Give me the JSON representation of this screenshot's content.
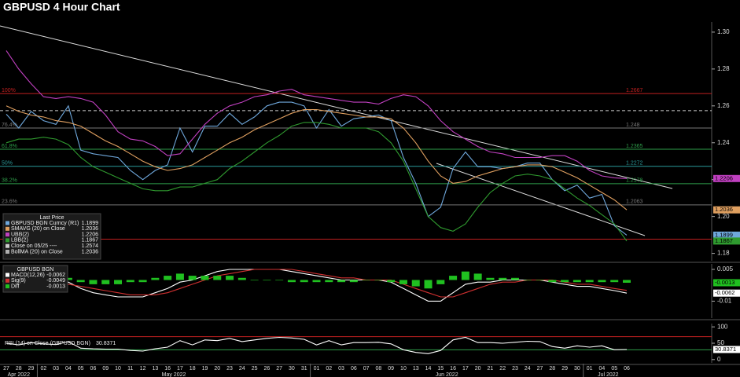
{
  "chart_data": [
    {
      "type": "line",
      "title": "GBPUSD 4 Hour Chart",
      "legend_title": "Last Price",
      "ylim": [
        1.176,
        1.3055
      ],
      "yticks": [
        {
          "value": 1.3,
          "label": "1.30"
        },
        {
          "value": 1.28,
          "label": "1.28"
        },
        {
          "value": 1.26,
          "label": "1.26"
        },
        {
          "value": 1.24,
          "label": "1.24"
        },
        {
          "value": 1.22,
          "label": "1.22"
        },
        {
          "value": 1.2,
          "label": "1.20"
        },
        {
          "value": 1.18,
          "label": "1.18"
        }
      ],
      "series": [
        {
          "name": "GBPUSD BGN Curncy (R1)",
          "color": "#6fa8dc",
          "badge": true,
          "values": [
            1.2555,
            1.248,
            1.257,
            1.252,
            1.25,
            1.26,
            1.236,
            1.234,
            1.233,
            1.232,
            1.225,
            1.22,
            1.225,
            1.228,
            1.248,
            1.235,
            1.249,
            1.249,
            1.256,
            1.25,
            1.254,
            1.26,
            1.262,
            1.262,
            1.26,
            1.248,
            1.258,
            1.249,
            1.253,
            1.254,
            1.255,
            1.252,
            1.232,
            1.218,
            1.2,
            1.205,
            1.226,
            1.235,
            1.227,
            1.227,
            1.226,
            1.227,
            1.229,
            1.229,
            1.22,
            1.214,
            1.217,
            1.21,
            1.212,
            1.195,
            1.1899
          ]
        },
        {
          "name": "SMAVG (20) on Close",
          "color": "#e0a060",
          "badge": true,
          "values": [
            1.26,
            1.257,
            1.255,
            1.254,
            1.252,
            1.251,
            1.249,
            1.245,
            1.241,
            1.238,
            1.234,
            1.23,
            1.227,
            1.225,
            1.226,
            1.228,
            1.232,
            1.236,
            1.24,
            1.243,
            1.247,
            1.25,
            1.253,
            1.256,
            1.258,
            1.258,
            1.257,
            1.256,
            1.255,
            1.254,
            1.254,
            1.253,
            1.248,
            1.24,
            1.23,
            1.222,
            1.218,
            1.219,
            1.222,
            1.224,
            1.226,
            1.227,
            1.228,
            1.228,
            1.227,
            1.224,
            1.221,
            1.217,
            1.213,
            1.209,
            1.2036
          ]
        },
        {
          "name": "UBB(2)",
          "color": "#c040c0",
          "badge": true,
          "values": [
            1.29,
            1.28,
            1.272,
            1.265,
            1.264,
            1.265,
            1.264,
            1.262,
            1.255,
            1.246,
            1.242,
            1.241,
            1.238,
            1.233,
            1.234,
            1.242,
            1.25,
            1.256,
            1.26,
            1.262,
            1.265,
            1.266,
            1.268,
            1.269,
            1.266,
            1.265,
            1.264,
            1.263,
            1.262,
            1.262,
            1.261,
            1.264,
            1.266,
            1.265,
            1.26,
            1.252,
            1.246,
            1.242,
            1.238,
            1.235,
            1.234,
            1.232,
            1.232,
            1.232,
            1.233,
            1.233,
            1.23,
            1.225,
            1.222,
            1.221,
            1.2206
          ]
        },
        {
          "name": "LBB(2)",
          "color": "#2f9a2f",
          "badge": true,
          "values": [
            1.24,
            1.242,
            1.242,
            1.243,
            1.242,
            1.239,
            1.232,
            1.227,
            1.224,
            1.221,
            1.218,
            1.215,
            1.214,
            1.214,
            1.216,
            1.216,
            1.218,
            1.22,
            1.226,
            1.23,
            1.235,
            1.24,
            1.244,
            1.249,
            1.251,
            1.251,
            1.25,
            1.248,
            1.248,
            1.248,
            1.246,
            1.24,
            1.23,
            1.215,
            1.2,
            1.194,
            1.192,
            1.196,
            1.205,
            1.213,
            1.218,
            1.222,
            1.223,
            1.222,
            1.22,
            1.215,
            1.21,
            1.206,
            1.201,
            1.196,
            1.1867
          ]
        }
      ],
      "levels": [
        {
          "label": "100%",
          "value": 1.2667,
          "color": "#c02020",
          "show_value": true
        },
        {
          "name": "Close on 05/25 ----",
          "value": 1.2574,
          "color": "#cccccc",
          "dash": true
        },
        {
          "label": "76.4%",
          "value": 1.248,
          "color": "#777777",
          "show_value": true
        },
        {
          "label": "61.8%",
          "value": 1.2365,
          "color": "#2e9e4a",
          "show_value": true
        },
        {
          "label": "50%",
          "value": 1.2272,
          "color": "#2a9a9a",
          "show_value": true
        },
        {
          "label": "38.2%",
          "value": 1.2178,
          "color": "#2e9e4a",
          "show_value": true
        },
        {
          "label": "23.6%",
          "value": 1.2063,
          "color": "#777777",
          "show_value": true
        },
        {
          "value": 1.1877,
          "color": "#c02020"
        }
      ],
      "legend_items": [
        {
          "name": "BollMA (20) on Close",
          "value": 1.2036,
          "color": "#b0b0b0"
        }
      ]
    },
    {
      "type": "macd",
      "legend_title": "GBPUSD BGN",
      "ylim": [
        -0.018,
        0.0076
      ],
      "yticks": [
        0.005,
        -0.01
      ],
      "series": [
        {
          "name": "MACD(12,26)",
          "color": "#ffffff",
          "badge": true,
          "values": [
            -0.002,
            -0.003,
            -0.003,
            -0.002,
            -0.002,
            -0.001,
            -0.004,
            -0.006,
            -0.007,
            -0.008,
            -0.008,
            -0.008,
            -0.006,
            -0.004,
            -0.001,
            0,
            0.002,
            0.004,
            0.005,
            0.005,
            0.005,
            0.005,
            0.005,
            0.004,
            0.003,
            0.002,
            0.001,
            0,
            0,
            0,
            0,
            -0.001,
            -0.004,
            -0.007,
            -0.01,
            -0.01,
            -0.006,
            -0.002,
            -0.001,
            -0.001,
            0,
            0,
            0,
            0,
            -0.001,
            -0.002,
            -0.003,
            -0.003,
            -0.004,
            -0.005,
            -0.0062
          ]
        },
        {
          "name": "Sig(9)",
          "color": "#d03030",
          "values": [
            -0.001,
            -0.002,
            -0.002,
            -0.002,
            -0.002,
            -0.002,
            -0.003,
            -0.004,
            -0.005,
            -0.006,
            -0.007,
            -0.007,
            -0.007,
            -0.006,
            -0.004,
            -0.002,
            0,
            0.002,
            0.003,
            0.004,
            0.005,
            0.005,
            0.005,
            0.005,
            0.004,
            0.003,
            0.002,
            0.001,
            0.001,
            0,
            0,
            0,
            -0.002,
            -0.004,
            -0.006,
            -0.008,
            -0.008,
            -0.006,
            -0.004,
            -0.002,
            -0.001,
            -0.001,
            0,
            0,
            0,
            -0.001,
            -0.002,
            -0.002,
            -0.003,
            -0.004,
            -0.0049
          ]
        },
        {
          "name": "Diff",
          "color": "#20c020",
          "style": "bar",
          "badge": true,
          "values": [
            -0.001,
            -0.001,
            -0.001,
            0,
            0,
            0.001,
            -0.001,
            -0.002,
            -0.002,
            -0.002,
            -0.001,
            -0.001,
            0.001,
            0.002,
            0.003,
            0.002,
            0.002,
            0.002,
            0.002,
            0.001,
            0,
            0,
            0,
            -0.001,
            -0.001,
            -0.001,
            -0.001,
            -0.001,
            -0.001,
            0,
            0,
            -0.001,
            -0.002,
            -0.003,
            -0.004,
            -0.002,
            0.002,
            0.004,
            0.003,
            0.001,
            0.001,
            0.001,
            0,
            0,
            -0.001,
            -0.001,
            -0.001,
            -0.001,
            -0.001,
            -0.001,
            -0.0013
          ]
        }
      ]
    },
    {
      "type": "line",
      "ylim": [
        -10,
        110
      ],
      "yticks": [
        100,
        50,
        0
      ],
      "levels": [
        {
          "value": 70,
          "color": "#c02020"
        },
        {
          "value": 30,
          "color": "#2e9e4a"
        }
      ],
      "series": [
        {
          "name": "RSI (14) on Close (GBPUSD BGN)",
          "color": "#ffffff",
          "badge": true,
          "values": [
            50,
            45,
            52,
            48,
            46,
            55,
            35,
            33,
            32,
            32,
            28,
            26,
            33,
            38,
            58,
            45,
            60,
            58,
            65,
            55,
            60,
            65,
            68,
            66,
            62,
            45,
            58,
            45,
            52,
            52,
            53,
            48,
            30,
            22,
            18,
            28,
            60,
            68,
            52,
            52,
            50,
            53,
            56,
            55,
            40,
            35,
            42,
            38,
            42,
            30,
            30.8371
          ]
        }
      ],
      "categories": [
        "27",
        "28",
        "29",
        "02",
        "03",
        "04",
        "05",
        "06",
        "09",
        "10",
        "11",
        "12",
        "13",
        "16",
        "17",
        "18",
        "19",
        "20",
        "23",
        "24",
        "25",
        "26",
        "27",
        "30",
        "31",
        "01",
        "02",
        "03",
        "06",
        "07",
        "08",
        "09",
        "10",
        "13",
        "14",
        "15",
        "16",
        "17",
        "20",
        "21",
        "22",
        "23",
        "24",
        "27",
        "28",
        "29",
        "30",
        "01",
        "04",
        "05",
        "06"
      ],
      "months": [
        {
          "label": "Apr 2022",
          "start": 0
        },
        {
          "label": "May 2022",
          "start": 3
        },
        {
          "label": "Jun 2022",
          "start": 25
        },
        {
          "label": "Jul 2022",
          "start": 47
        }
      ]
    }
  ]
}
